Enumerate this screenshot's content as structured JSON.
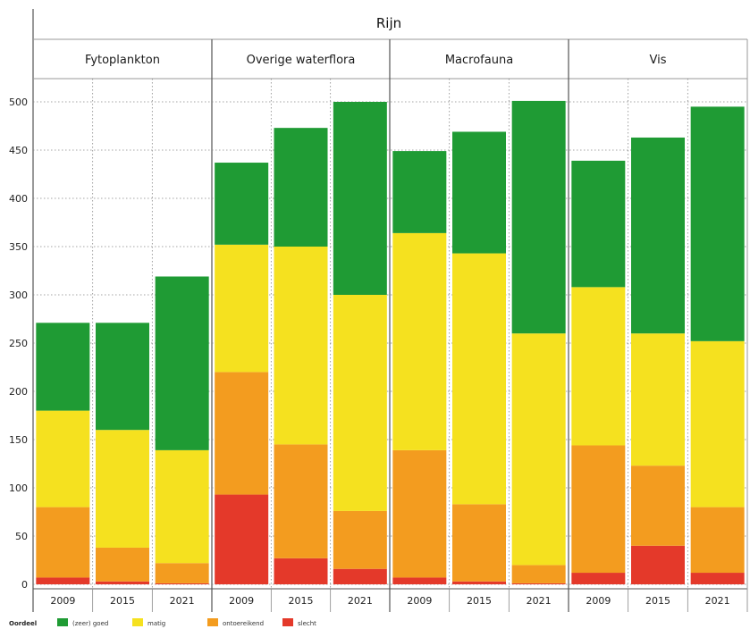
{
  "chart_data": {
    "type": "bar",
    "stacked": true,
    "title": "Rijn",
    "ylim": [
      0,
      525
    ],
    "yticks": [
      0,
      50,
      100,
      150,
      200,
      250,
      300,
      350,
      400,
      450,
      500
    ],
    "legend_title": "Oordeel",
    "legend_position": "bottom-left",
    "grid": true,
    "series": [
      {
        "key": "slecht",
        "name": "slecht",
        "color": "#e4392a"
      },
      {
        "key": "ontoereikend",
        "name": "ontoereikend",
        "color": "#f39c1f"
      },
      {
        "key": "matig",
        "name": "matig",
        "color": "#f5e11f"
      },
      {
        "key": "goed",
        "name": "(zeer) goed",
        "color": "#1f9b34"
      }
    ],
    "legend_order": [
      "goed",
      "matig",
      "ontoereikend",
      "slecht"
    ],
    "facets": [
      {
        "name": "Fytoplankton",
        "categories": [
          "2009",
          "2015",
          "2021"
        ],
        "values": {
          "slecht": [
            7,
            3,
            1
          ],
          "ontoereikend": [
            73,
            35,
            21
          ],
          "matig": [
            100,
            122,
            117
          ],
          "goed": [
            91,
            111,
            180
          ]
        }
      },
      {
        "name": "Overige waterflora",
        "categories": [
          "2009",
          "2015",
          "2021"
        ],
        "values": {
          "slecht": [
            93,
            27,
            16
          ],
          "ontoereikend": [
            127,
            118,
            60
          ],
          "matig": [
            132,
            205,
            224
          ],
          "goed": [
            85,
            123,
            200
          ]
        }
      },
      {
        "name": "Macrofauna",
        "categories": [
          "2009",
          "2015",
          "2021"
        ],
        "values": {
          "slecht": [
            7,
            3,
            1
          ],
          "ontoereikend": [
            132,
            80,
            19
          ],
          "matig": [
            225,
            260,
            240
          ],
          "goed": [
            85,
            126,
            241
          ]
        }
      },
      {
        "name": "Vis",
        "categories": [
          "2009",
          "2015",
          "2021"
        ],
        "values": {
          "slecht": [
            12,
            40,
            12
          ],
          "ontoereikend": [
            132,
            83,
            68
          ],
          "matig": [
            164,
            137,
            172
          ],
          "goed": [
            131,
            203,
            243
          ]
        }
      }
    ]
  }
}
